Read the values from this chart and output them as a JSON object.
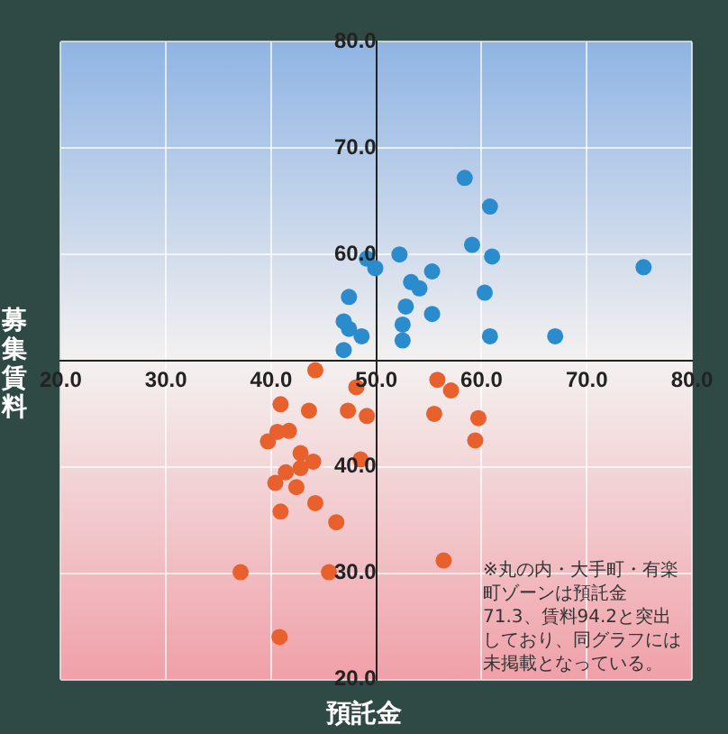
{
  "chart_data": {
    "type": "scatter",
    "xlabel": "預託金",
    "ylabel": "募集賃料",
    "annotations": [
      "※丸の内・大手町・有楽町ゾーンは預託金71.3、賃料94.2と突出しており、同グラフには未掲載となっている。"
    ],
    "xlim": [
      20,
      80
    ],
    "ylim": [
      20,
      80
    ],
    "xticks": [
      {
        "value": 20,
        "label": "20.0"
      },
      {
        "value": 30,
        "label": "30.0"
      },
      {
        "value": 40,
        "label": "40.0"
      },
      {
        "value": 50,
        "label": "50.0"
      },
      {
        "value": 60,
        "label": "60.0"
      },
      {
        "value": 70,
        "label": "70.0"
      },
      {
        "value": 80,
        "label": "80.0"
      }
    ],
    "yticks": [
      {
        "value": 20,
        "label": "20.0"
      },
      {
        "value": 30,
        "label": "30.0"
      },
      {
        "value": 40,
        "label": "40.0"
      },
      {
        "value": 50,
        "label": null
      },
      {
        "value": 60,
        "label": "60.0"
      },
      {
        "value": 70,
        "label": "70.0"
      },
      {
        "value": 80,
        "label": "80.0"
      }
    ],
    "grid": true,
    "marker": "circle",
    "series": [
      {
        "color": "#2a8ccc",
        "x": [
          58.4,
          60.8,
          59.1,
          61.0,
          75.4,
          49.1,
          49.9,
          52.2,
          55.3,
          53.3,
          54.1,
          60.3,
          47.4,
          52.8,
          55.3,
          46.9,
          47.4,
          48.6,
          52.5,
          52.5,
          60.8,
          67.0,
          46.9
        ],
        "values": [
          67.2,
          64.5,
          60.9,
          59.8,
          58.8,
          59.6,
          58.7,
          60.0,
          58.4,
          57.4,
          56.8,
          56.4,
          56.0,
          55.1,
          54.4,
          53.7,
          53.0,
          52.3,
          53.4,
          51.9,
          52.3,
          52.3,
          51.0
        ]
      },
      {
        "color": "#e8602c",
        "x": [
          44.2,
          48.1,
          55.8,
          57.1,
          40.9,
          43.6,
          47.3,
          49.1,
          55.5,
          59.7,
          59.4,
          40.6,
          41.7,
          39.7,
          42.8,
          44.0,
          42.8,
          41.4,
          48.5,
          40.4,
          42.4,
          44.2,
          40.9,
          46.2,
          56.4,
          37.1,
          45.5,
          40.8
        ],
        "values": [
          49.1,
          47.5,
          48.2,
          47.2,
          45.9,
          45.3,
          45.3,
          44.8,
          45.0,
          44.6,
          42.5,
          43.3,
          43.4,
          42.4,
          41.3,
          40.5,
          39.9,
          39.5,
          40.7,
          38.5,
          38.1,
          36.6,
          35.8,
          34.8,
          31.2,
          30.1,
          30.1,
          24.0
        ]
      }
    ]
  }
}
